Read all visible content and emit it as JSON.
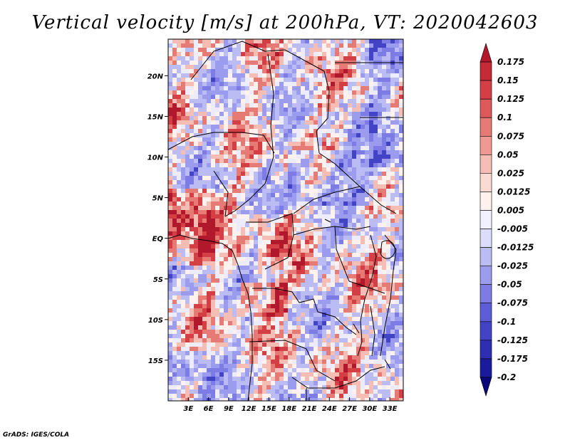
{
  "chart_data": {
    "type": "heatmap",
    "title": "Vertical velocity [m/s] at 200hPa, VT: 2020042603",
    "variable": "Vertical velocity",
    "units": "m/s",
    "level": "200hPa",
    "valid_time": "2020042603",
    "lon_range": [
      0,
      35
    ],
    "lat_range": [
      -20,
      24.5
    ],
    "x_ticks": [
      3,
      6,
      9,
      12,
      15,
      18,
      21,
      24,
      27,
      30,
      33
    ],
    "x_tick_labels": [
      "3E",
      "6E",
      "9E",
      "12E",
      "15E",
      "18E",
      "21E",
      "24E",
      "27E",
      "30E",
      "33E"
    ],
    "y_ticks": [
      20,
      15,
      10,
      5,
      0,
      -5,
      -10,
      -15
    ],
    "y_tick_labels": [
      "20N",
      "15N",
      "10N",
      "5N",
      "EQ",
      "5S",
      "10S",
      "15S"
    ],
    "colorbar": {
      "labels": [
        "0.175",
        "0.15",
        "0.125",
        "0.1",
        "0.075",
        "0.05",
        "0.025",
        "0.0125",
        "0.005",
        "-0.005",
        "-0.0125",
        "-0.025",
        "-0.05",
        "-0.075",
        "-0.1",
        "-0.125",
        "-0.175",
        "-0.2"
      ],
      "colors": [
        "#b2182b",
        "#c52b35",
        "#d33f45",
        "#de5a5a",
        "#e67a74",
        "#ee9a92",
        "#f5bdb4",
        "#fadbd3",
        "#fff1ee",
        "#f2f2ff",
        "#dcdcfb",
        "#bcbcf5",
        "#9c9cee",
        "#7c7ce4",
        "#5d5dd8",
        "#4343c6",
        "#2e2eb2",
        "#1a1a9c",
        "#08087a"
      ]
    }
  },
  "credit": "GrADS: IGES/COLA"
}
